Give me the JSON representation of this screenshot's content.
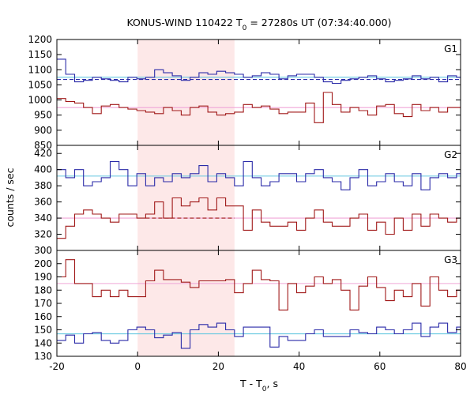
{
  "chart_data": {
    "type": "line",
    "title": {
      "main": "KONUS-WIND 110422 T",
      "sub": "0",
      "rest": " = 27280s UT (07:34:40.000)"
    },
    "xlabel": {
      "main": "T - T",
      "sub": "0",
      "rest": ", s"
    },
    "ylabel": "counts / sec",
    "xlim": [
      -20,
      80
    ],
    "xticks": [
      -20,
      0,
      20,
      40,
      60,
      80
    ],
    "highlight": {
      "x0": 0,
      "x1": 24,
      "color": "#fde8e8"
    },
    "colors": {
      "blue": "#2a2aa8",
      "red": "#a01818",
      "cyan": "#66c8e0",
      "pink": "#f0a6d8"
    },
    "bin_edges": [
      -20,
      -17.8,
      -15.6,
      -13.4,
      -11.2,
      -9,
      -6.8,
      -4.6,
      -2.4,
      -0.2,
      2,
      4.2,
      6.4,
      8.6,
      10.8,
      13,
      15.2,
      17.4,
      19.6,
      21.8,
      24,
      26.2,
      28.4,
      30.6,
      32.8,
      35,
      37.2,
      39.4,
      41.6,
      43.8,
      46,
      48.2,
      50.4,
      52.6,
      54.8,
      57,
      59.2,
      61.4,
      63.6,
      65.8,
      68,
      70.2,
      72.4,
      74.6,
      76.8,
      79,
      80
    ],
    "panels": [
      {
        "label": "G1",
        "ylim": [
          850,
          1200
        ],
        "yticks": [
          850,
          900,
          950,
          1000,
          1050,
          1100,
          1150,
          1200
        ],
        "series": [
          {
            "color_key": "blue",
            "values": [
              1135,
              1085,
              1060,
              1065,
              1075,
              1070,
              1065,
              1060,
              1075,
              1070,
              1075,
              1100,
              1090,
              1080,
              1065,
              1075,
              1090,
              1085,
              1095,
              1090,
              1085,
              1075,
              1080,
              1090,
              1085,
              1070,
              1080,
              1085,
              1085,
              1075,
              1060,
              1055,
              1065,
              1070,
              1075,
              1080,
              1070,
              1060,
              1065,
              1070,
              1080,
              1070,
              1075,
              1060,
              1080,
              1075
            ]
          },
          {
            "color_key": "red",
            "values": [
              1005,
              995,
              990,
              975,
              955,
              980,
              985,
              975,
              970,
              965,
              960,
              955,
              975,
              965,
              950,
              975,
              980,
              960,
              950,
              955,
              960,
              985,
              975,
              980,
              970,
              955,
              960,
              960,
              990,
              925,
              1025,
              985,
              960,
              975,
              965,
              950,
              980,
              985,
              955,
              945,
              985,
              965,
              975,
              960,
              975,
              975
            ]
          }
        ],
        "refs": [
          {
            "color_key": "cyan",
            "value": 1075
          },
          {
            "color_key": "blue",
            "value": 1068,
            "dashed": true,
            "x0": -20,
            "x1": 80
          },
          {
            "color_key": "pink",
            "value": 975
          }
        ]
      },
      {
        "label": "G2",
        "ylim": [
          300,
          430
        ],
        "yticks": [
          300,
          320,
          340,
          360,
          380,
          400,
          420
        ],
        "series": [
          {
            "color_key": "blue",
            "values": [
              400,
              390,
              400,
              380,
              385,
              390,
              410,
              400,
              380,
              395,
              380,
              390,
              385,
              395,
              390,
              395,
              405,
              385,
              395,
              390,
              380,
              410,
              390,
              380,
              385,
              395,
              395,
              385,
              395,
              400,
              390,
              385,
              375,
              390,
              400,
              380,
              385,
              395,
              385,
              380,
              395,
              375,
              390,
              395,
              390,
              395
            ]
          },
          {
            "color_key": "red",
            "values": [
              315,
              330,
              345,
              350,
              345,
              340,
              335,
              345,
              345,
              340,
              345,
              360,
              340,
              365,
              355,
              360,
              365,
              350,
              365,
              355,
              355,
              325,
              350,
              335,
              330,
              330,
              335,
              325,
              340,
              350,
              335,
              330,
              330,
              340,
              345,
              325,
              335,
              320,
              340,
              325,
              345,
              330,
              345,
              340,
              335,
              340
            ]
          }
        ],
        "refs": [
          {
            "color_key": "cyan",
            "value": 392
          },
          {
            "color_key": "pink",
            "value": 340
          },
          {
            "color_key": "red",
            "value": 340,
            "dashed": true,
            "x0": 2,
            "x1": 24
          }
        ]
      },
      {
        "label": "G3",
        "ylim": [
          130,
          210
        ],
        "yticks": [
          130,
          140,
          150,
          160,
          170,
          180,
          190,
          200
        ],
        "series": [
          {
            "color_key": "red",
            "values": [
              190,
              203,
              185,
              185,
              175,
              180,
              175,
              180,
              175,
              175,
              187,
              195,
              188,
              188,
              186,
              182,
              187,
              187,
              187,
              188,
              178,
              185,
              195,
              188,
              187,
              165,
              185,
              178,
              183,
              190,
              185,
              188,
              180,
              165,
              183,
              190,
              182,
              172,
              180,
              175,
              185,
              168,
              190,
              180,
              175,
              180
            ]
          },
          {
            "color_key": "blue",
            "values": [
              142,
              146,
              140,
              147,
              148,
              142,
              140,
              142,
              150,
              152,
              150,
              144,
              146,
              148,
              136,
              150,
              154,
              152,
              155,
              150,
              145,
              152,
              152,
              152,
              137,
              145,
              142,
              142,
              147,
              150,
              145,
              145,
              145,
              150,
              148,
              147,
              152,
              150,
              147,
              150,
              155,
              145,
              152,
              155,
              148,
              152
            ]
          }
        ],
        "refs": [
          {
            "color_key": "pink",
            "value": 185
          },
          {
            "color_key": "cyan",
            "value": 147
          }
        ]
      }
    ]
  }
}
